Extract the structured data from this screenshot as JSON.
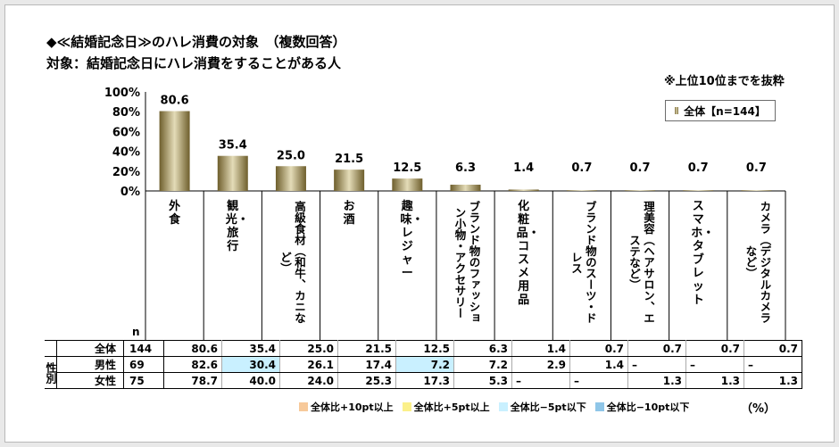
{
  "title": "◆≪結婚記念日≫のハレ消費の対象　（複数回答）",
  "subtitle": "対象：結婚記念日にハレ消費をすることがある人",
  "note": "※上位10位までを抜粋",
  "legend": "全体【n=144】",
  "n_label": "n",
  "colors": {
    "bar_dark": "#6e5e2c",
    "bar_light": "#e4dcb8",
    "blue_highlight": "#c9f0ff",
    "key_plus10": "#f7c99a",
    "key_plus5": "#fbf08a",
    "key_minus5": "#c9f0ff",
    "key_minus10": "#8fc6e8"
  },
  "chart_data": {
    "type": "bar",
    "ylim": [
      0,
      100
    ],
    "yticks": [
      "0%",
      "20%",
      "40%",
      "60%",
      "80%",
      "100%"
    ],
    "categories": [
      "外食",
      "観光・旅行",
      "高級食材（和牛、カニなど）",
      "お酒",
      "趣味・レジャー",
      "ブランド物のファッション小物・アクセサリー",
      "化粧品・コスメ用品",
      "ブランド物のスーツ・ドレス",
      "理美容（ヘアサロン、エステなど）",
      "スマホ・タブレット",
      "カメラ（デジタルカメラなど）"
    ],
    "series": [
      {
        "name": "全体【n=144】",
        "values": [
          80.6,
          35.4,
          25.0,
          21.5,
          12.5,
          6.3,
          1.4,
          0.7,
          0.7,
          0.7,
          0.7
        ]
      }
    ],
    "value_labels": [
      "80.6",
      "35.4",
      "25.0",
      "21.5",
      "12.5",
      "6.3",
      "1.4",
      "0.7",
      "0.7",
      "0.7",
      "0.7"
    ]
  },
  "table": {
    "group_label": "性別",
    "rows": [
      {
        "label": "全体",
        "n": "144",
        "values": [
          "80.6",
          "35.4",
          "25.0",
          "21.5",
          "12.5",
          "6.3",
          "1.4",
          "0.7",
          "0.7",
          "0.7",
          "0.7"
        ]
      },
      {
        "label": "男性",
        "n": "69",
        "values": [
          "82.6",
          "30.4",
          "26.1",
          "17.4",
          "7.2",
          "7.2",
          "2.9",
          "1.4",
          "–",
          "–",
          "–"
        ]
      },
      {
        "label": "女性",
        "n": "75",
        "values": [
          "78.7",
          "40.0",
          "24.0",
          "25.3",
          "17.3",
          "5.3",
          "–",
          "–",
          "1.3",
          "1.3",
          "1.3"
        ]
      }
    ]
  },
  "keys": [
    "全体比+10pt以上",
    "全体比+5pt以上",
    "全体比−5pt以下",
    "全体比−10pt以下"
  ],
  "unit": "（%）"
}
